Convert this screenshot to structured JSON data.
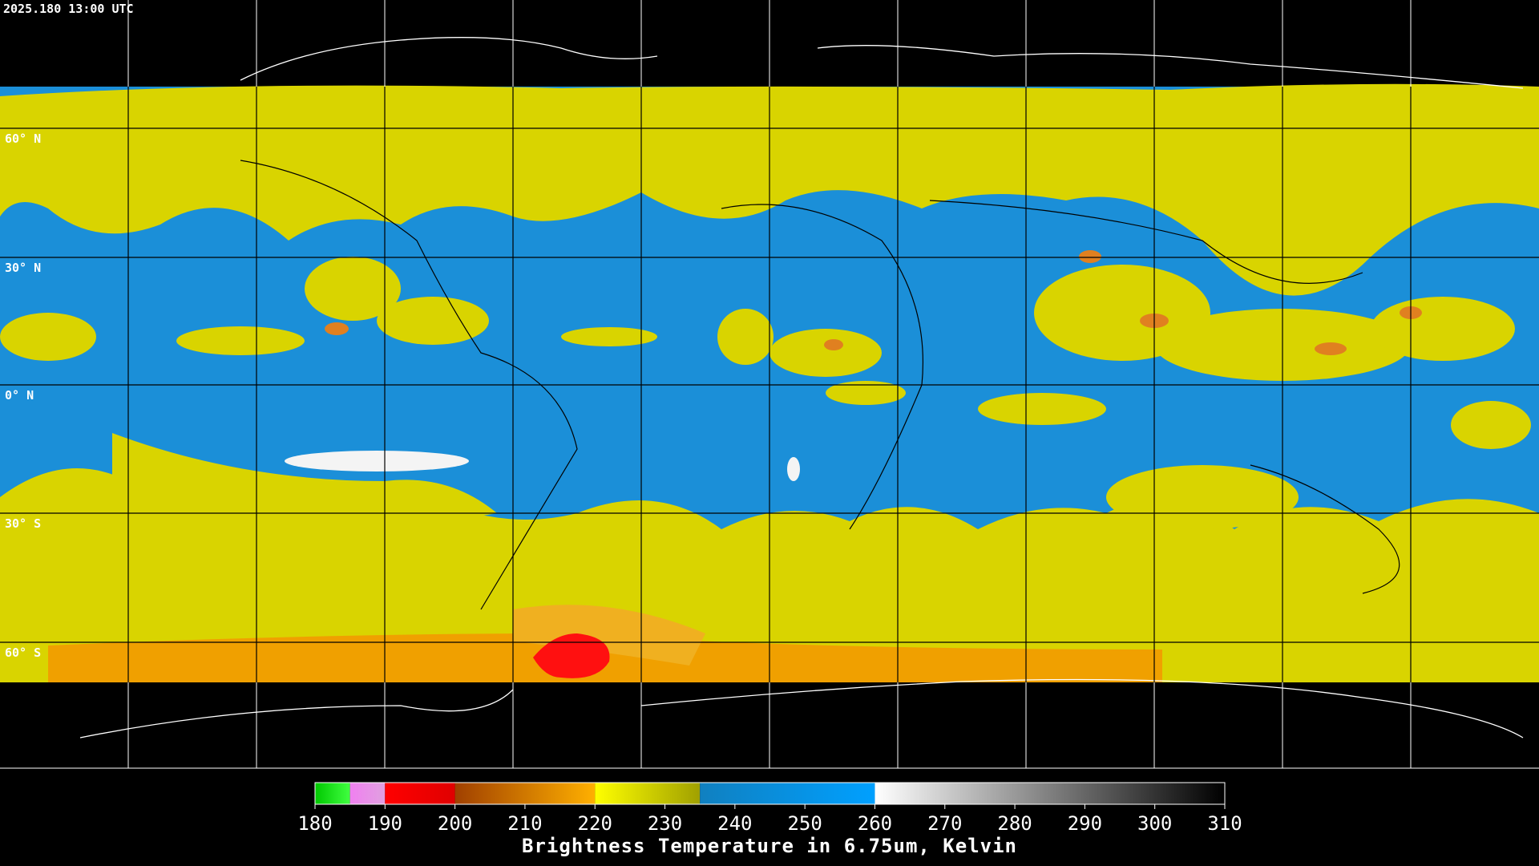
{
  "timestamp": "2025.180 13:00 UTC",
  "lat_labels": [
    "60° N",
    "30° N",
    "0° N",
    "30° S",
    "60° S"
  ],
  "colorbar": {
    "range": [
      180,
      310
    ],
    "ticks": [
      180,
      190,
      200,
      210,
      220,
      230,
      240,
      250,
      260,
      270,
      280,
      290,
      300,
      310
    ],
    "segments": [
      {
        "from": 180,
        "to": 185,
        "colors": [
          "#00c800",
          "#40ff40"
        ]
      },
      {
        "from": 185,
        "to": 190,
        "colors": [
          "#f080f0",
          "#e0a0e0"
        ]
      },
      {
        "from": 190,
        "to": 200,
        "colors": [
          "#ff0000",
          "#e00000"
        ]
      },
      {
        "from": 200,
        "to": 220,
        "colors": [
          "#a04000",
          "#ffb000"
        ]
      },
      {
        "from": 220,
        "to": 235,
        "colors": [
          "#ffff00",
          "#a0a000"
        ]
      },
      {
        "from": 235,
        "to": 260,
        "colors": [
          "#1080c0",
          "#00a0ff"
        ]
      },
      {
        "from": 260,
        "to": 310,
        "colors": [
          "#ffffff",
          "#000000"
        ]
      }
    ],
    "title": "Brightness Temperature in 6.75um, Kelvin"
  }
}
